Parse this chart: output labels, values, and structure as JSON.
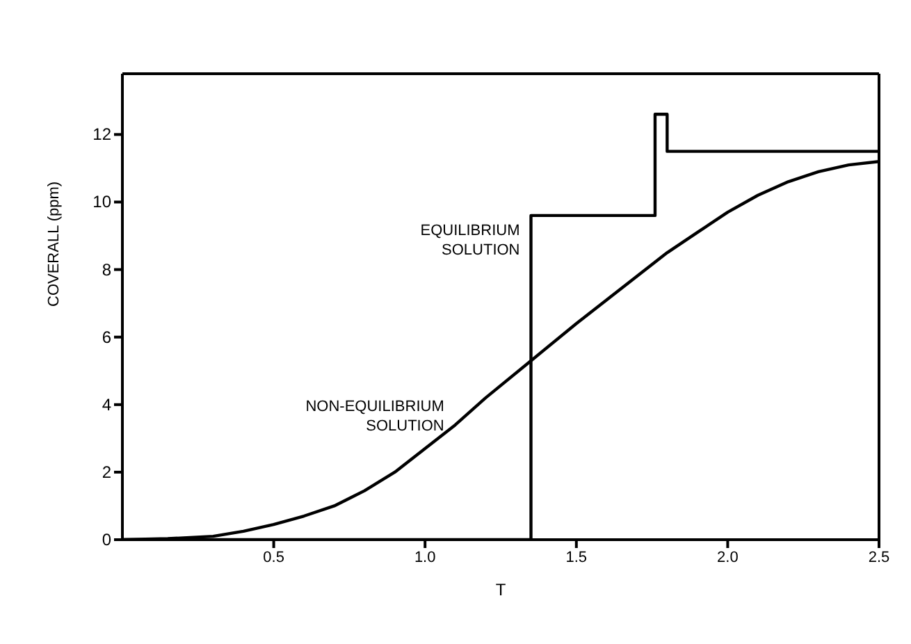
{
  "chart_data": {
    "type": "line",
    "xlabel": "T",
    "ylabel": "COVERALL (ppm)",
    "xlim": [
      0,
      2.5
    ],
    "ylim": [
      0,
      13.8
    ],
    "xticks": [
      0.5,
      {
        "value": 1,
        "label": "1.0"
      },
      1.5,
      {
        "value": 2,
        "label": "2.0"
      },
      2.5
    ],
    "yticks": [
      0,
      2,
      4,
      6,
      8,
      10,
      12
    ],
    "grid": false,
    "legend": false,
    "marker": "none",
    "series": [
      {
        "name": "EQUILIBRIUM SOLUTION",
        "type": "step",
        "color": "#000000",
        "x": [
          0,
          1.35,
          1.76,
          1.8,
          2.5
        ],
        "values": [
          0,
          9.6,
          12.6,
          11.5,
          11.5
        ]
      },
      {
        "name": "NON-EQUILIBRIUM SOLUTION",
        "type": "line",
        "color": "#000000",
        "x": [
          0,
          0.15,
          0.3,
          0.4,
          0.5,
          0.6,
          0.7,
          0.8,
          0.9,
          1.0,
          1.1,
          1.2,
          1.35,
          1.5,
          1.6,
          1.7,
          1.8,
          1.9,
          2.0,
          2.1,
          2.2,
          2.3,
          2.4,
          2.5
        ],
        "values": [
          0,
          0.03,
          0.1,
          0.25,
          0.45,
          0.7,
          1.0,
          1.45,
          2.0,
          2.7,
          3.4,
          4.2,
          5.3,
          6.4,
          7.1,
          7.8,
          8.5,
          9.1,
          9.7,
          10.2,
          10.6,
          10.9,
          11.1,
          11.2
        ]
      }
    ]
  }
}
